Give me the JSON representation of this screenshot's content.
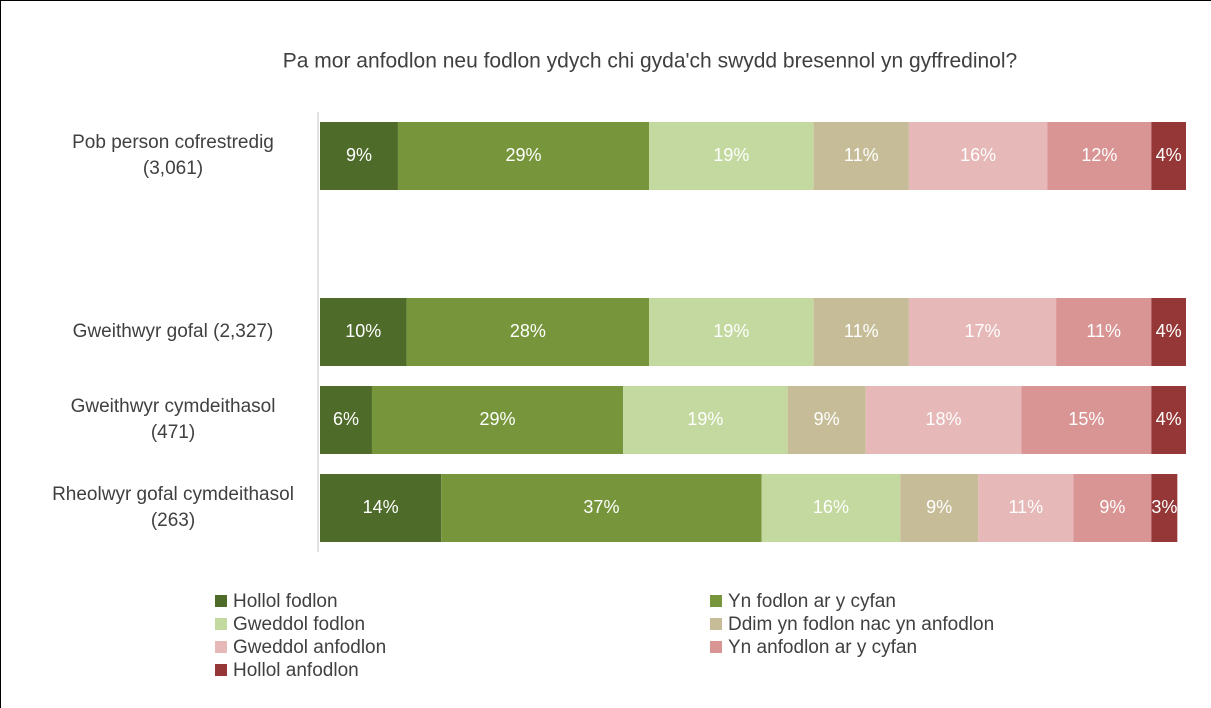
{
  "chart_data": {
    "type": "stacked-bar-horizontal",
    "title": "Pa mor anfodlon neu fodlon ydych chi gyda'ch swydd bresennol yn gyffredinol?",
    "categories": [
      "Pob person cofrestredig (3,061)",
      null,
      "Gweithwyr gofal (2,327)",
      "Gweithwyr cymdeithasol (471)",
      "Rheolwyr gofal cymdeithasol (263)"
    ],
    "xlim": [
      0,
      100
    ],
    "series": [
      {
        "name": "Hollol fodlon",
        "color": "#4e6b2a",
        "values": [
          9,
          null,
          10,
          6,
          14
        ],
        "value_labels": [
          "9%",
          null,
          "10%",
          "6%",
          "14%"
        ]
      },
      {
        "name": "Yn fodlon ar y cyfan",
        "color": "#77963c",
        "values": [
          29,
          null,
          28,
          29,
          37
        ],
        "value_labels": [
          "29%",
          null,
          "28%",
          "29%",
          "37%"
        ]
      },
      {
        "name": "Gweddol fodlon",
        "color": "#c4d9a0",
        "values": [
          19,
          null,
          19,
          19,
          16
        ],
        "value_labels": [
          "19%",
          null,
          "19%",
          "19%",
          "16%"
        ]
      },
      {
        "name": "Ddim yn fodlon nac yn anfodlon",
        "color": "#c6bd98",
        "values": [
          11,
          null,
          11,
          9,
          9
        ],
        "value_labels": [
          "11%",
          null,
          "11%",
          "9%",
          "9%"
        ]
      },
      {
        "name": "Gweddol anfodlon",
        "color": "#e6b8b8",
        "values": [
          16,
          null,
          17,
          18,
          11
        ],
        "value_labels": [
          "16%",
          null,
          "17%",
          "18%",
          "11%"
        ]
      },
      {
        "name": "Yn anfodlon ar y cyfan",
        "color": "#d99494",
        "values": [
          12,
          null,
          11,
          15,
          9
        ],
        "value_labels": [
          "12%",
          null,
          "11%",
          "15%",
          "9%"
        ]
      },
      {
        "name": "Hollol anfodlon",
        "color": "#953737",
        "values": [
          4,
          null,
          4,
          4,
          3
        ],
        "value_labels": [
          "4%",
          null,
          "4%",
          "4%",
          "3%"
        ]
      }
    ]
  }
}
